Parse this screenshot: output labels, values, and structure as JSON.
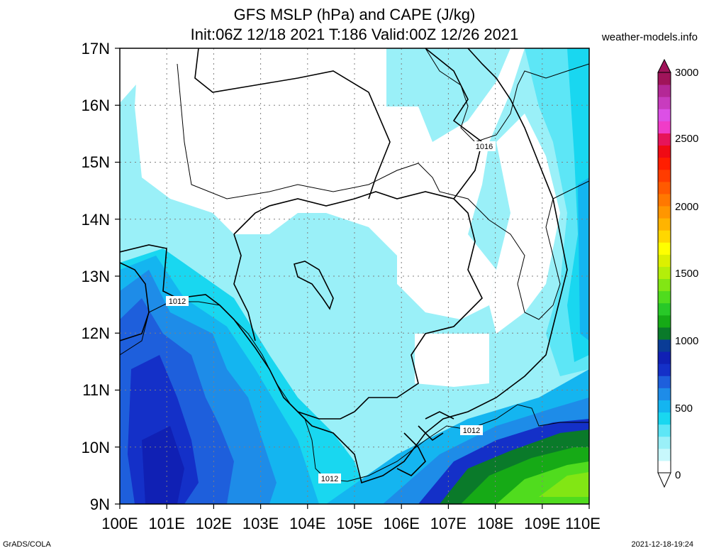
{
  "header": {
    "title_line1": "GFS MSLP (hPa) and CAPE (J/kg)",
    "title_line2": "Init:06Z 12/18 2021 T:186 Valid:00Z 12/26 2021",
    "site": "weather-models.info"
  },
  "footer": {
    "left": "GrADS/COLA",
    "right": "2021-12-18-19:24"
  },
  "map": {
    "lon_labels": [
      "100E",
      "101E",
      "102E",
      "103E",
      "104E",
      "105E",
      "106E",
      "107E",
      "108E",
      "109E",
      "110E"
    ],
    "lat_labels": [
      "17N",
      "16N",
      "15N",
      "14N",
      "13N",
      "12N",
      "11N",
      "10N",
      "9N"
    ],
    "isobars": [
      {
        "label": "1016"
      },
      {
        "label": "1012"
      },
      {
        "label": "1012"
      },
      {
        "label": "1012"
      }
    ]
  },
  "colorbar": {
    "labels": [
      "3000",
      "2500",
      "2000",
      "1500",
      "1000",
      "500",
      "0"
    ],
    "colors": [
      "#ffffff",
      "#c8f8fc",
      "#9af0f8",
      "#5de6f6",
      "#19d7f0",
      "#14b5f0",
      "#1e8ce8",
      "#1e5fdc",
      "#1430c8",
      "#1020b4",
      "#0a3c96",
      "#0a7a2a",
      "#16aa16",
      "#28c828",
      "#50dc1e",
      "#82e614",
      "#b4ee0a",
      "#dcf000",
      "#ffff00",
      "#ffd700",
      "#ffb400",
      "#ff9600",
      "#ff7800",
      "#ff5a00",
      "#ff3c00",
      "#ff1e00",
      "#f00a14",
      "#e6145a",
      "#f03cc8",
      "#dc50e6",
      "#c83cbe",
      "#b42896",
      "#a0145a"
    ],
    "top_color": "#a0145a"
  }
}
